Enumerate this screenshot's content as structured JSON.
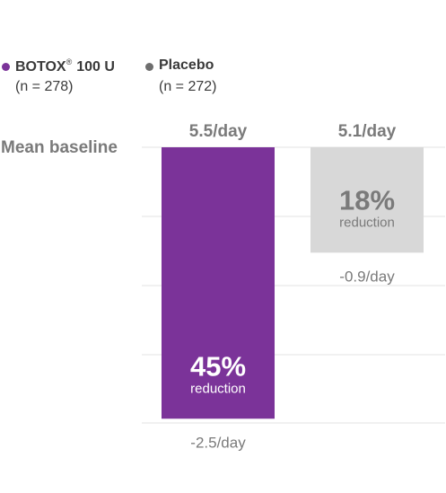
{
  "legend": {
    "botox": {
      "name": "BOTOX",
      "mark": "®",
      "suffix": "100 U",
      "n": "(n = 278)",
      "color": "#7b3399"
    },
    "placebo": {
      "name": "Placebo",
      "n": "(n = 272)",
      "color": "#6e6e6e"
    }
  },
  "chart_data": {
    "type": "bar",
    "baseline_label": "Mean baseline",
    "series": [
      {
        "name": "BOTOX® 100 U",
        "baseline": 5.5,
        "baseline_label": "5.5/day",
        "change": -2.5,
        "change_label": "-2.5/day",
        "percent_label": "45%",
        "percent_sublabel": "reduction",
        "color": "#7b3399"
      },
      {
        "name": "Placebo",
        "baseline": 5.1,
        "baseline_label": "5.1/day",
        "change": -0.9,
        "change_label": "-0.9/day",
        "percent_label": "18%",
        "percent_sublabel": "reduction",
        "color": "#d8d8d8"
      }
    ],
    "grid": true
  }
}
